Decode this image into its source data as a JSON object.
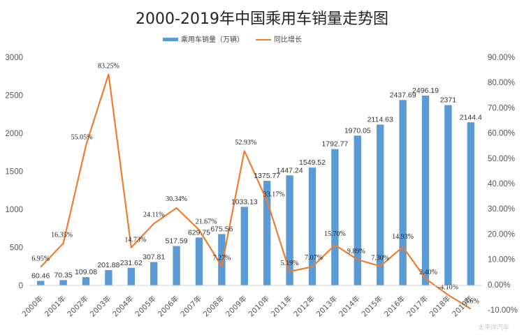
{
  "chart_data": {
    "type": "bar",
    "title": "2000-2019年中国乘用车销量走势图",
    "categories": [
      "2000年",
      "2001年",
      "2002年",
      "2003年",
      "2004年",
      "2005年",
      "2006年",
      "2007年",
      "2008年",
      "2009年",
      "2010年",
      "2011年",
      "2012年",
      "2013年",
      "2014年",
      "2015年",
      "2016年",
      "2017年",
      "2018年",
      "2019年"
    ],
    "series": [
      {
        "name": "乘用车销量（万辆）",
        "type": "bar",
        "axis": "left",
        "color": "#5B9BD5",
        "values": [
          60.46,
          70.35,
          109.08,
          201.88,
          231.62,
          307.81,
          517.59,
          629.75,
          675.56,
          1033.13,
          1375.77,
          1447.24,
          1549.52,
          1792.77,
          1970.05,
          2114.63,
          2437.69,
          2496.19,
          2371,
          2144.4
        ],
        "labels": [
          "60.46",
          "70.35",
          "109.08",
          "201.88",
          "231.62",
          "307.81",
          "517.59",
          "629.75",
          "675.56",
          "1033.13",
          "1375.77",
          "1447.24",
          "1549.52",
          "1792.77",
          "1970.05",
          "2114.63",
          "2437.69",
          "2496.19",
          "2371",
          "2144.4"
        ]
      },
      {
        "name": "同比增长",
        "type": "line",
        "axis": "right",
        "color": "#ED7D31",
        "values": [
          6.95,
          16.35,
          55.05,
          83.25,
          14.73,
          24.11,
          30.34,
          21.67,
          7.27,
          52.93,
          33.17,
          5.19,
          7.07,
          15.7,
          9.89,
          7.3,
          14.93,
          2.4,
          -4.1,
          -9.6
        ],
        "labels": [
          "6.95%",
          "16.35%",
          "55.05%",
          "83.25%",
          "14.73%",
          "24.11%",
          "30.34%",
          "21.67%",
          "7.27%",
          "52.93%",
          "33.17%",
          "5.19%",
          "7.07%",
          "15.70%",
          "9.89%",
          "7.30%",
          "14.93%",
          "2.40%",
          "-4.10%",
          "-9.6%"
        ]
      }
    ],
    "left_axis": {
      "ylim": [
        0,
        3000
      ],
      "ticks": [
        "0",
        "500",
        "1000",
        "1500",
        "2000",
        "2500",
        "3000"
      ]
    },
    "right_axis": {
      "ylim": [
        -10,
        90
      ],
      "ticks": [
        "-10.00%",
        "0.00%",
        "10.00%",
        "20.00%",
        "30.00%",
        "40.00%",
        "50.00%",
        "60.00%",
        "70.00%",
        "80.00%",
        "90.00%"
      ]
    },
    "legend_position": "top-center",
    "grid": false
  },
  "watermark": "太平洋汽车"
}
